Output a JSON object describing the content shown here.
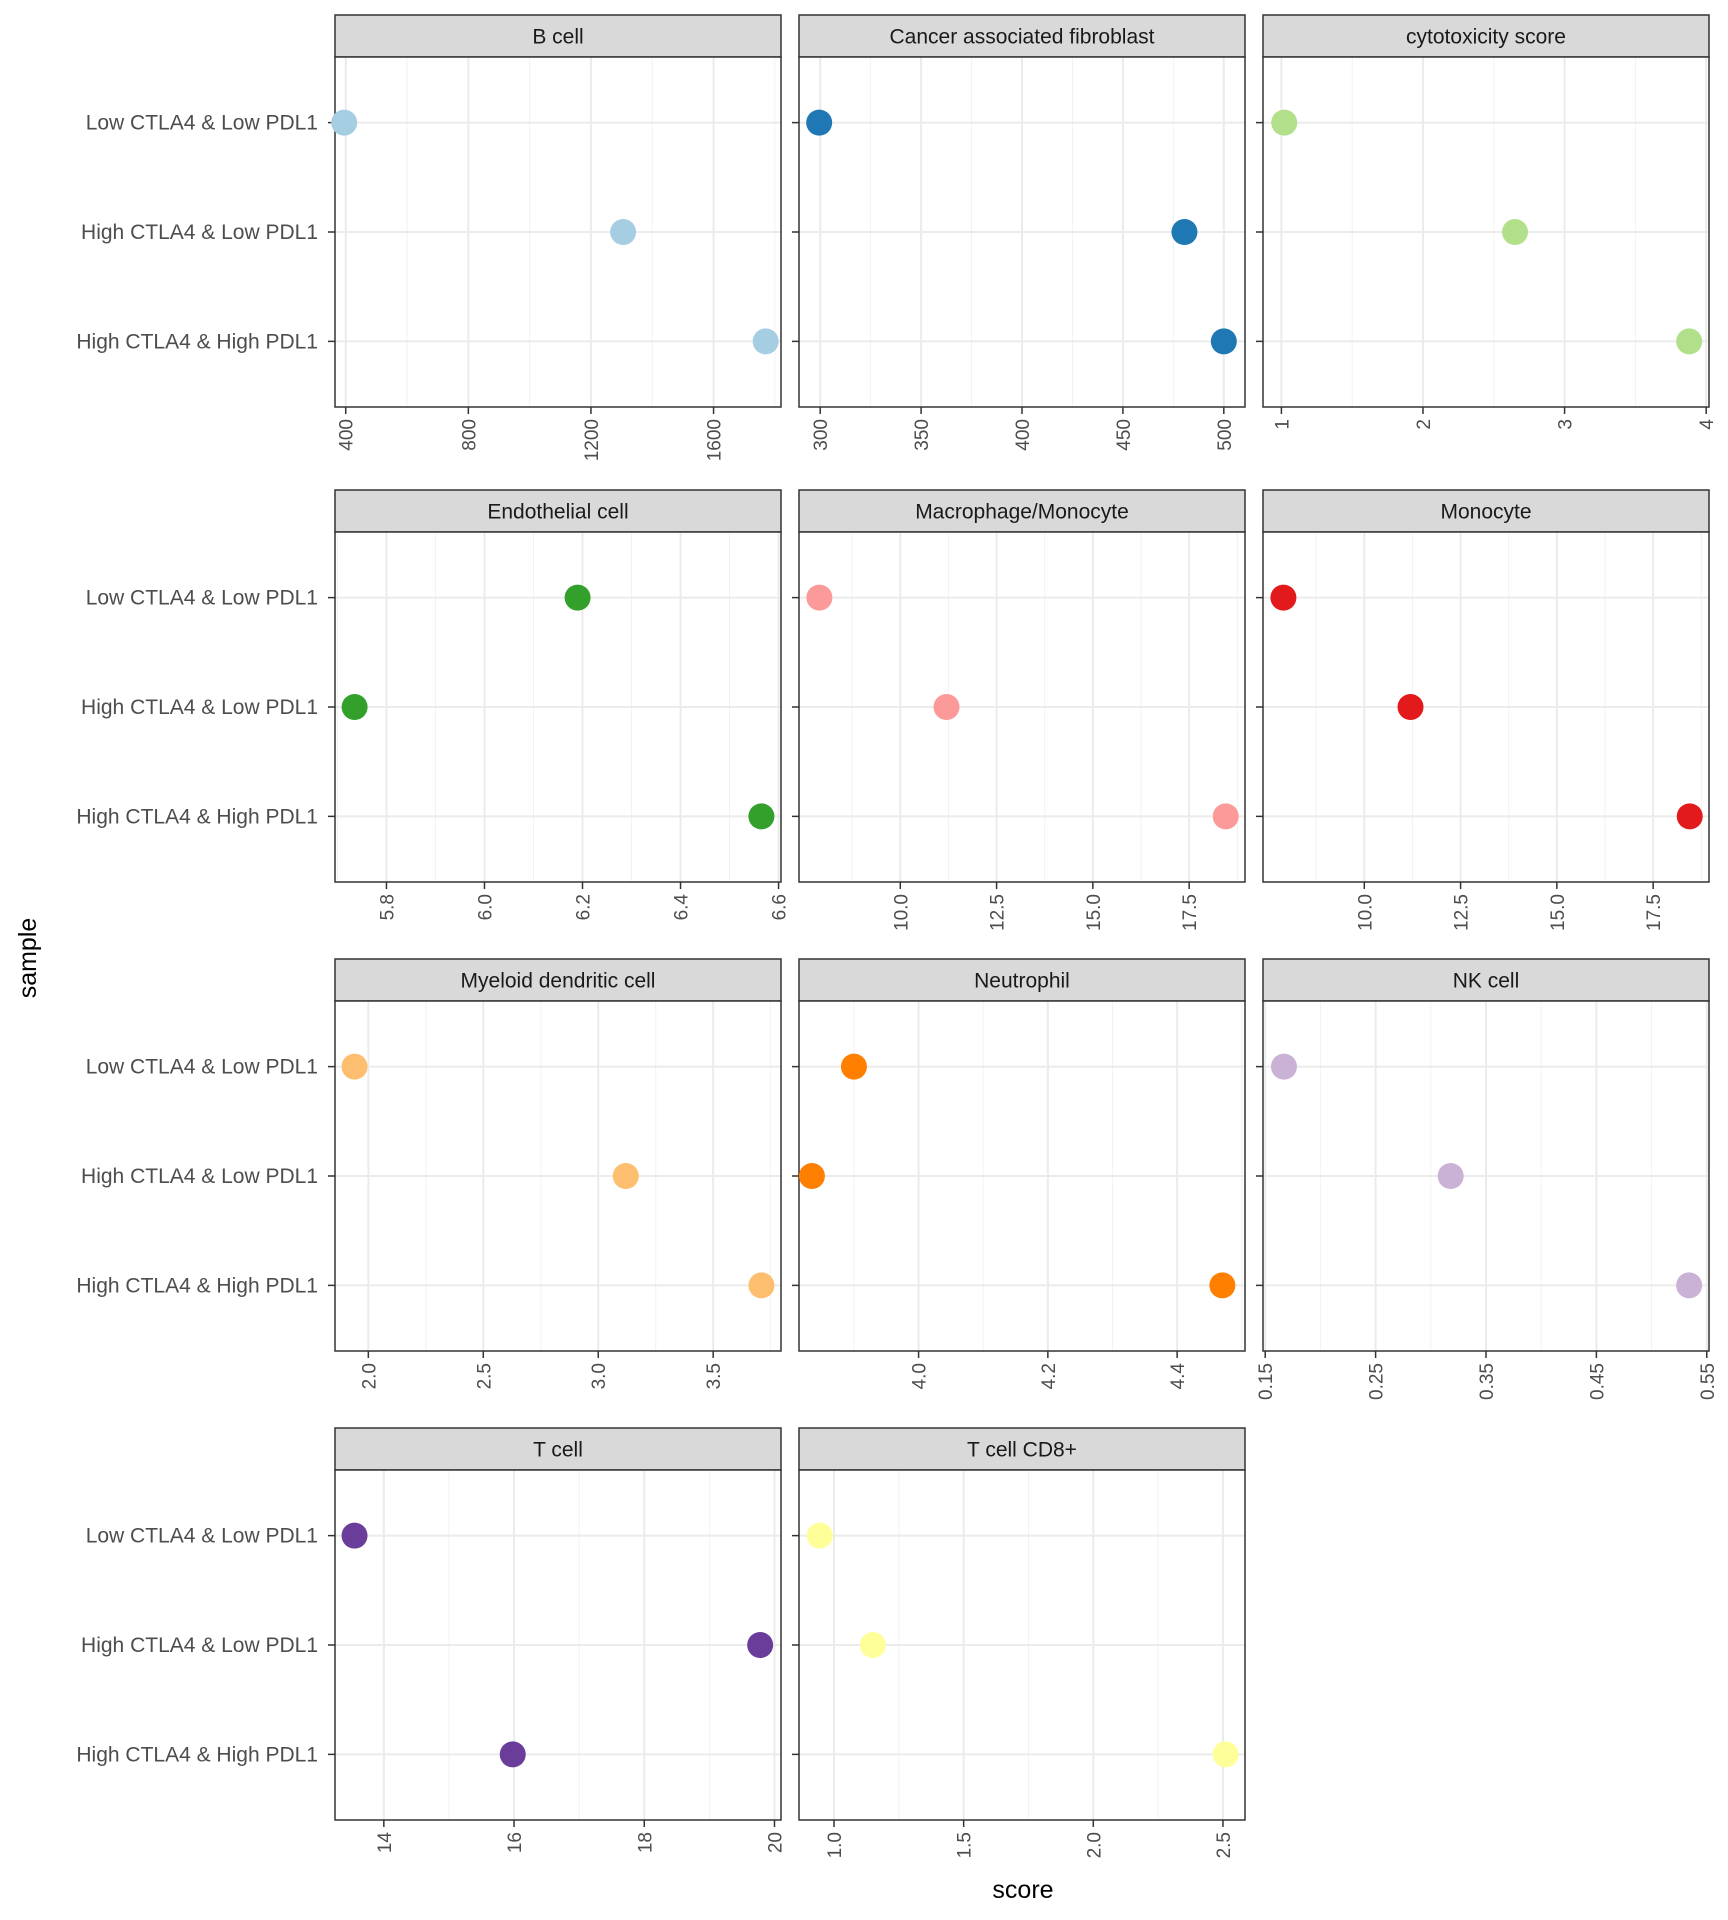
{
  "figure": {
    "xlabel": "score",
    "ylabel": "sample",
    "rows": [
      "Low CTLA4 & Low PDL1",
      "High CTLA4 & Low PDL1",
      "High CTLA4 & High PDL1"
    ]
  },
  "chart_data": [
    {
      "type": "scatter",
      "title": "B cell",
      "color": "#A6CEE3",
      "xlim": [
        365,
        1820
      ],
      "ticks": [
        400,
        800,
        1200,
        1600
      ],
      "tick_labels": [
        "400",
        "800",
        "1200",
        "1600"
      ],
      "y": [
        "Low CTLA4 & Low PDL1",
        "High CTLA4 & Low PDL1",
        "High CTLA4 & High PDL1"
      ],
      "x": [
        395,
        1305,
        1770
      ]
    },
    {
      "type": "scatter",
      "title": "Cancer associated fibroblast",
      "color": "#1F78B4",
      "xlim": [
        289.5,
        510.5
      ],
      "ticks": [
        300,
        350,
        400,
        450,
        500
      ],
      "tick_labels": [
        "300",
        "350",
        "400",
        "450",
        "500"
      ],
      "y": [
        "Low CTLA4 & Low PDL1",
        "High CTLA4 & Low PDL1",
        "High CTLA4 & High PDL1"
      ],
      "x": [
        299.5,
        480.5,
        500
      ]
    },
    {
      "type": "scatter",
      "title": "cytotoxicity score",
      "color": "#B2DF8A",
      "xlim": [
        0.87,
        4.02
      ],
      "ticks": [
        1,
        2,
        3,
        4
      ],
      "tick_labels": [
        "1",
        "2",
        "3",
        "4"
      ],
      "y": [
        "Low CTLA4 & Low PDL1",
        "High CTLA4 & Low PDL1",
        "High CTLA4 & High PDL1"
      ],
      "x": [
        1.02,
        2.65,
        3.88
      ]
    },
    {
      "type": "scatter",
      "title": "Endothelial cell",
      "color": "#33A02C",
      "xlim": [
        5.695,
        6.605
      ],
      "ticks": [
        5.8,
        6.0,
        6.2,
        6.4,
        6.6
      ],
      "tick_labels": [
        "5.8",
        "6.0",
        "6.2",
        "6.4",
        "6.6"
      ],
      "y": [
        "Low CTLA4 & Low PDL1",
        "High CTLA4 & Low PDL1",
        "High CTLA4 & High PDL1"
      ],
      "x": [
        6.19,
        5.735,
        6.565
      ]
    },
    {
      "type": "scatter",
      "title": "Macrophage/Monocyte",
      "color": "#FB9A99",
      "xlim": [
        7.37,
        18.95
      ],
      "ticks": [
        10.0,
        12.5,
        15.0,
        17.5
      ],
      "tick_labels": [
        "10.0",
        "12.5",
        "15.0",
        "17.5"
      ],
      "y": [
        "Low CTLA4 & Low PDL1",
        "High CTLA4 & Low PDL1",
        "High CTLA4 & High PDL1"
      ],
      "x": [
        7.9,
        11.2,
        18.45
      ]
    },
    {
      "type": "scatter",
      "title": "Monocyte",
      "color": "#E31A1C",
      "xlim": [
        7.37,
        18.95
      ],
      "ticks": [
        10.0,
        12.5,
        15.0,
        17.5
      ],
      "tick_labels": [
        "10.0",
        "12.5",
        "15.0",
        "17.5"
      ],
      "y": [
        "Low CTLA4 & Low PDL1",
        "High CTLA4 & Low PDL1",
        "High CTLA4 & High PDL1"
      ],
      "x": [
        7.9,
        11.2,
        18.45
      ]
    },
    {
      "type": "scatter",
      "title": "Myeloid dendritic cell",
      "color": "#FDBF6F",
      "xlim": [
        1.855,
        3.795
      ],
      "ticks": [
        2.0,
        2.5,
        3.0,
        3.5
      ],
      "tick_labels": [
        "2.0",
        "2.5",
        "3.0",
        "3.5"
      ],
      "y": [
        "Low CTLA4 & Low PDL1",
        "High CTLA4 & Low PDL1",
        "High CTLA4 & High PDL1"
      ],
      "x": [
        1.94,
        3.12,
        3.71
      ]
    },
    {
      "type": "scatter",
      "title": "Neutrophil",
      "color": "#FF7F00",
      "xlim": [
        3.815,
        4.505
      ],
      "ticks": [
        4.0,
        4.2,
        4.4
      ],
      "tick_labels": [
        "4.0",
        "4.2",
        "4.4"
      ],
      "y": [
        "Low CTLA4 & Low PDL1",
        "High CTLA4 & Low PDL1",
        "High CTLA4 & High PDL1"
      ],
      "x": [
        3.9,
        3.835,
        4.47
      ]
    },
    {
      "type": "scatter",
      "title": "NK cell",
      "color": "#CAB2D6",
      "xlim": [
        0.148,
        0.552
      ],
      "ticks": [
        0.15,
        0.25,
        0.35,
        0.45,
        0.55
      ],
      "tick_labels": [
        "0.15",
        "0.25",
        "0.35",
        "0.45",
        "0.55"
      ],
      "y": [
        "Low CTLA4 & Low PDL1",
        "High CTLA4 & Low PDL1",
        "High CTLA4 & High PDL1"
      ],
      "x": [
        0.167,
        0.318,
        0.534
      ]
    },
    {
      "type": "scatter",
      "title": "T cell",
      "color": "#6A3D9A",
      "xlim": [
        13.25,
        20.1
      ],
      "ticks": [
        14,
        16,
        18,
        20
      ],
      "tick_labels": [
        "14",
        "16",
        "18",
        "20"
      ],
      "y": [
        "Low CTLA4 & Low PDL1",
        "High CTLA4 & Low PDL1",
        "High CTLA4 & High PDL1"
      ],
      "x": [
        13.55,
        19.78,
        15.98
      ]
    },
    {
      "type": "scatter",
      "title": "T cell CD8+",
      "color": "#FFFF99",
      "xlim": [
        0.865,
        2.585
      ],
      "ticks": [
        1.0,
        1.5,
        2.0,
        2.5
      ],
      "tick_labels": [
        "1.0",
        "1.5",
        "2.0",
        "2.5"
      ],
      "y": [
        "Low CTLA4 & Low PDL1",
        "High CTLA4 & Low PDL1",
        "High CTLA4 & High PDL1"
      ],
      "x": [
        0.945,
        1.15,
        2.51
      ]
    }
  ]
}
